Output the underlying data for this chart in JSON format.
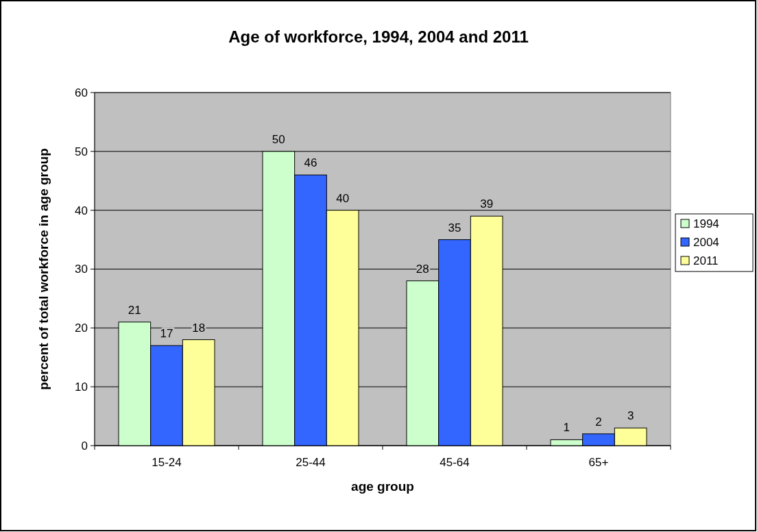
{
  "chart_data": {
    "type": "bar",
    "title": "Age of workforce, 1994, 2004 and 2011",
    "xlabel": "age group",
    "ylabel": "percent of total workforce in age group",
    "categories": [
      "15-24",
      "25-44",
      "45-64",
      "65+"
    ],
    "series": [
      {
        "name": "1994",
        "color": "#ccffcc",
        "values": [
          21,
          50,
          28,
          1
        ]
      },
      {
        "name": "2004",
        "color": "#3366ff",
        "values": [
          17,
          46,
          35,
          2
        ]
      },
      {
        "name": "2011",
        "color": "#ffff99",
        "values": [
          18,
          40,
          39,
          3
        ]
      }
    ],
    "ylim": [
      0,
      60
    ],
    "yticks": [
      0,
      10,
      20,
      30,
      40,
      50,
      60
    ],
    "grid": "y",
    "legend": "right",
    "data_labels": true
  }
}
